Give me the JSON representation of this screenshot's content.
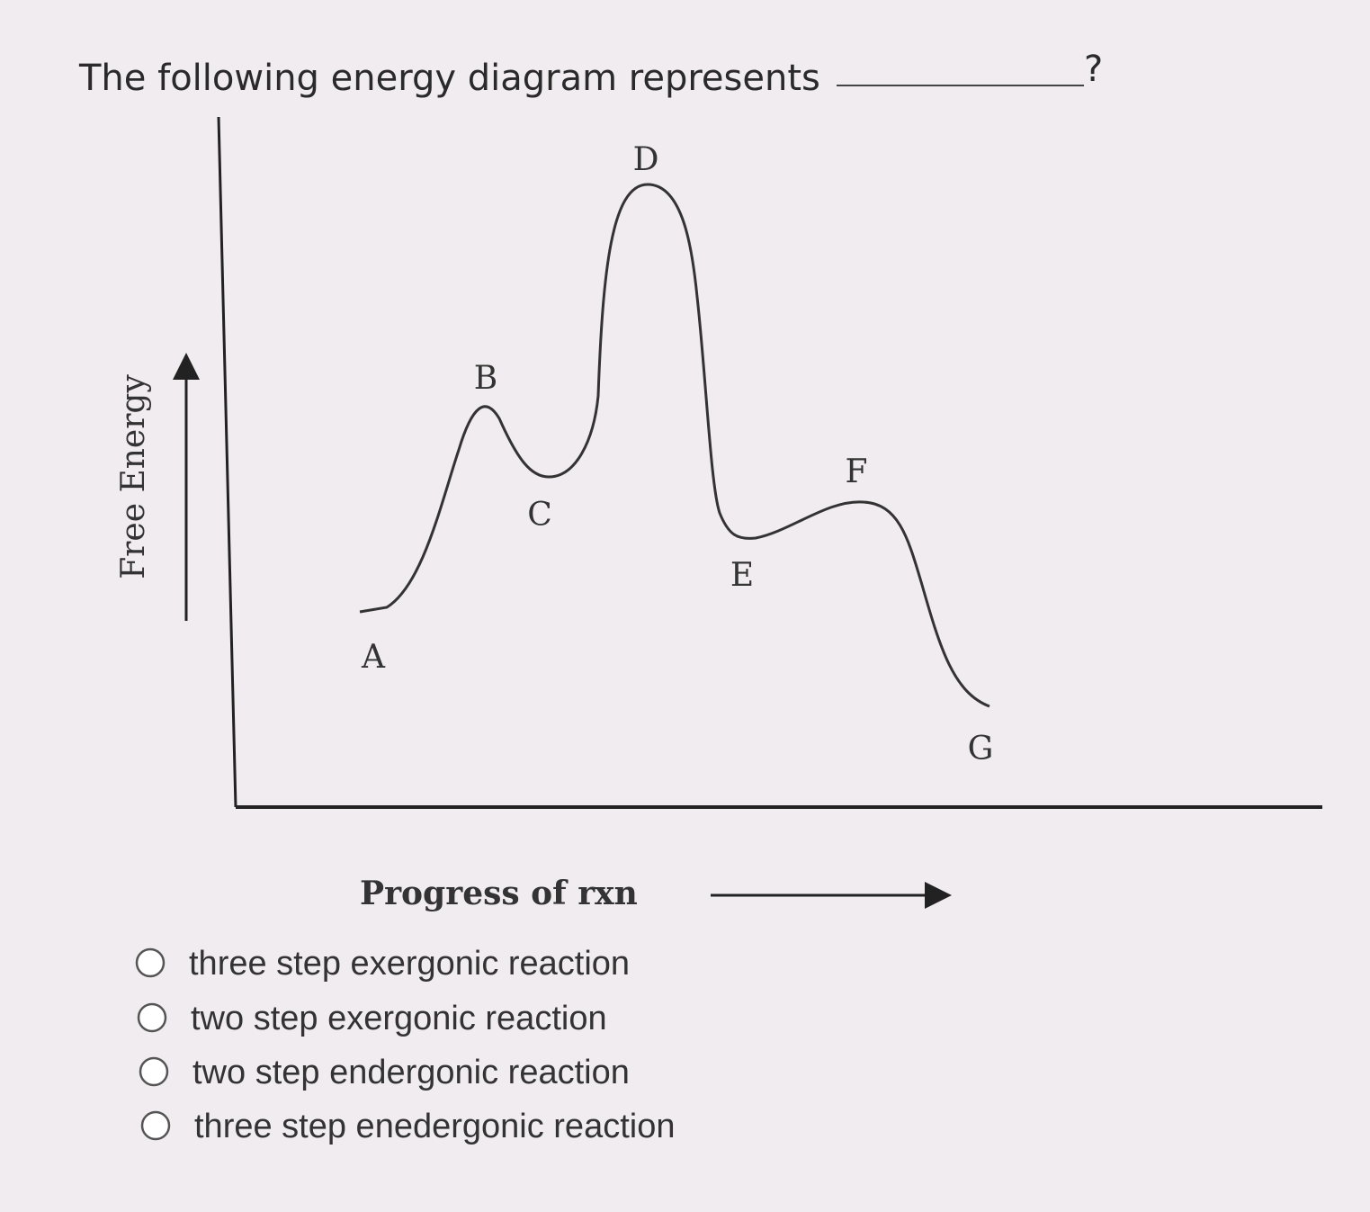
{
  "question": {
    "text": "The following energy diagram represents",
    "suffix": "?"
  },
  "diagram": {
    "y_axis_label": "Free Energy",
    "x_axis_label": "Progress of rxn",
    "points": [
      {
        "label": "A"
      },
      {
        "label": "B"
      },
      {
        "label": "C"
      },
      {
        "label": "D"
      },
      {
        "label": "E"
      },
      {
        "label": "F"
      },
      {
        "label": "G"
      }
    ]
  },
  "options": [
    "three step exergonic reaction",
    "two step exergonic reaction",
    "two step endergonic reaction",
    "three step enedergonic reaction"
  ]
}
